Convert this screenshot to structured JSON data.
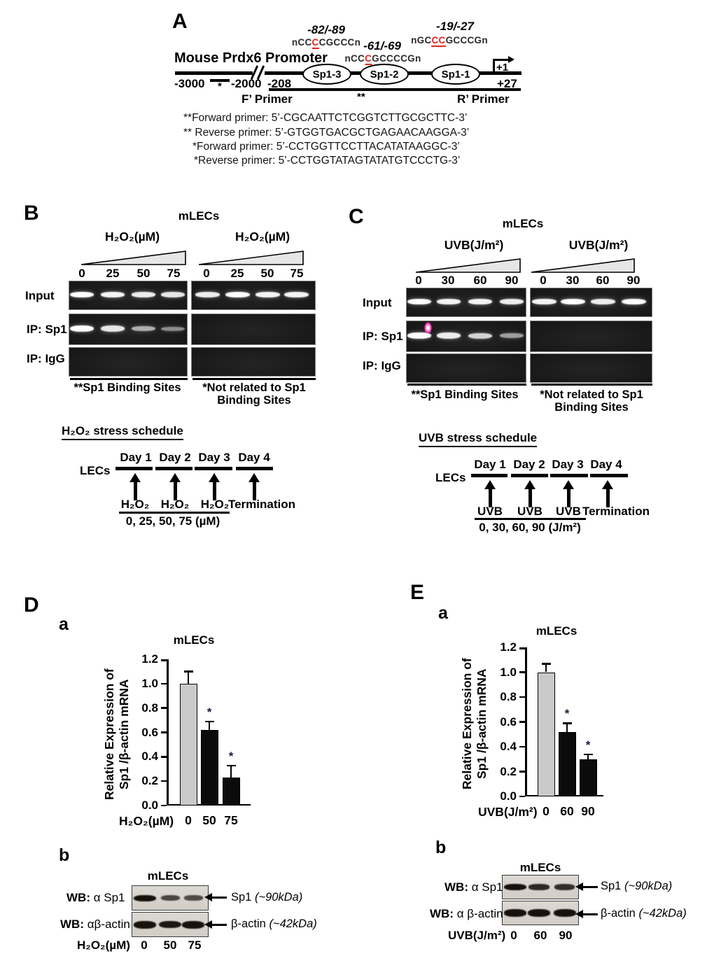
{
  "colors": {
    "sequence_highlight": "#e8251c",
    "artifact_magenta": "#ff35b5",
    "gray_bar": "#c9c9c9",
    "black_bar": "#0b0b0b"
  },
  "figure": {
    "A": {
      "label": "A",
      "promoter": "Mouse Prdx6 Promoter",
      "sites": [
        {
          "name": "Sp1-3",
          "pos": "-82/-89",
          "seq_pre": "nCC",
          "seq_red": "C",
          "seq_post": "CGCCCn"
        },
        {
          "name": "Sp1-2",
          "pos": "-61/-69",
          "seq_pre": "nCC",
          "seq_red": "C",
          "seq_post": "GCCCCGn"
        },
        {
          "name": "Sp1-1",
          "pos": "-19/-27",
          "seq_pre": "nGC",
          "seq_red": "CC",
          "seq_post": "GCCCGn"
        }
      ],
      "coords": {
        "m3000": "-3000",
        "star": "*",
        "m2000": "-2000",
        "m208": "-208",
        "tss": "+1",
        "p27": "+27"
      },
      "f_primer": "F’ Primer",
      "mid_star": "**",
      "r_primer": "R’ Primer",
      "primers": [
        "**Forward primer: 5’-CGCAATTCTCGGTCTTGCGCTTC-3’",
        "** Reverse primer: 5’-GTGGTGACGCTGAGAACAAGGA-3’",
        "*Forward primer: 5’-CCTGGTTCCTTACATATAAGGC-3’",
        "*Reverse primer: 5’-CCTGGTATAGTATATGTCCCTG-3’"
      ]
    },
    "B": {
      "label": "B",
      "cell": "mLECs",
      "dose_label": "H₂O₂(µM)",
      "doses": [
        "0",
        "25",
        "50",
        "75"
      ],
      "rows": [
        "Input",
        "IP: Sp1",
        "IP: IgG"
      ],
      "left_caption": "**Sp1 Binding Sites",
      "right_caption_line1": "*Not related to  Sp1",
      "right_caption_line2": "Binding Sites",
      "gels": {
        "left": {
          "input": [
            1,
            0.95,
            0.9,
            0.85
          ],
          "sp1": [
            1,
            0.85,
            0.5,
            0.28
          ],
          "igg": [
            0,
            0,
            0,
            0
          ]
        },
        "right": {
          "input": [
            0.9,
            1,
            0.95,
            0.95
          ],
          "sp1": [
            0,
            0,
            0,
            0
          ],
          "igg": [
            0,
            0,
            0,
            0
          ]
        }
      },
      "schedule": {
        "title": "H₂O₂ stress schedule",
        "cells": "LECs",
        "days": [
          "Day 1",
          "Day 2",
          "Day 3",
          "Day 4"
        ],
        "treatments": [
          "H₂O₂",
          "H₂O₂",
          "H₂O₂",
          "Termination"
        ],
        "dose_line": "0, 25, 50, 75 (µM)"
      }
    },
    "C": {
      "label": "C",
      "cell": "mLECs",
      "dose_label": "UVB(J/m²)",
      "doses": [
        "0",
        "30",
        "60",
        "90"
      ],
      "rows": [
        "Input",
        "IP: Sp1",
        "IP: IgG"
      ],
      "left_caption": "**Sp1 Binding Sites",
      "right_caption_line1": "*Not related to  Sp1",
      "right_caption_line2": "Binding Sites",
      "gels": {
        "left": {
          "input": [
            1,
            0.95,
            0.95,
            0.9
          ],
          "sp1": [
            1,
            0.9,
            0.75,
            0.4
          ],
          "igg": [
            0,
            0,
            0,
            0
          ]
        },
        "right": {
          "input": [
            0.95,
            1,
            0.9,
            1
          ],
          "sp1": [
            0,
            0,
            0,
            0
          ],
          "igg": [
            0,
            0,
            0,
            0
          ]
        }
      },
      "schedule": {
        "title": "UVB stress schedule",
        "cells": "LECs",
        "days": [
          "Day 1",
          "Day 2",
          "Day 3",
          "Day 4"
        ],
        "treatments": [
          "UVB",
          "UVB",
          "UVB",
          "Termination"
        ],
        "dose_line": "0, 30, 60, 90 (J/m²)"
      }
    },
    "D": {
      "label": "D",
      "a_label": "a",
      "b_label": "b",
      "blot": {
        "cell": "mLECs",
        "rows": [
          {
            "wb_prefix": "WB:",
            "wb_rest": " α Sp1",
            "target_name": "Sp1",
            "target_size": "(~90kDa)",
            "bands": [
              1,
              0.5,
              0.45
            ]
          },
          {
            "wb_prefix": "WB:",
            "wb_rest": " αβ-actin",
            "target_name": "β-actin",
            "target_size": "(~42kDa)",
            "bands": [
              1,
              0.95,
              1
            ]
          }
        ],
        "dose_label": "H₂O₂(µM)",
        "doses": [
          "0",
          "50",
          "75"
        ]
      }
    },
    "E": {
      "label": "E",
      "a_label": "a",
      "b_label": "b",
      "blot": {
        "cell": "mLECs",
        "rows": [
          {
            "wb_prefix": "WB:",
            "wb_rest": " α Sp1",
            "target_name": "Sp1",
            "target_size": "(~90kDa)",
            "bands": [
              1,
              0.78,
              0.72
            ]
          },
          {
            "wb_prefix": "WB:",
            "wb_rest": " α β-actin",
            "target_name": "β-actin",
            "target_size": "(~42kDa)",
            "bands": [
              1,
              1,
              1
            ]
          }
        ],
        "dose_label": "UVB(J/m²)",
        "doses": [
          "0",
          "60",
          "90"
        ]
      }
    }
  },
  "chart_data": [
    {
      "type": "bar",
      "panel": "D",
      "title": "mLECs",
      "ylabel_lines": [
        "Relative Expression of",
        "Sp1 /β-actin mRNA"
      ],
      "xlabel": "H₂O₂(µM)",
      "categories": [
        "0",
        "50",
        "75"
      ],
      "values": [
        1.0,
        0.62,
        0.23
      ],
      "errors": [
        0.1,
        0.07,
        0.1
      ],
      "sig": [
        "",
        "*",
        "*"
      ],
      "bar_colors": [
        "#c9c9c9",
        "#0b0b0b",
        "#0b0b0b"
      ],
      "ylim": [
        0,
        1.2
      ],
      "yticks": [
        "0.0",
        "0.2",
        "0.4",
        "0.6",
        "0.8",
        "1.0",
        "1.2"
      ],
      "grid": false,
      "legend": false
    },
    {
      "type": "bar",
      "panel": "E",
      "title": "mLECs",
      "ylabel_lines": [
        "Relative Expression of",
        "Sp1 /β-actin mRNA"
      ],
      "xlabel": "UVB(J/m²)",
      "categories": [
        "0",
        "60",
        "90"
      ],
      "values": [
        1.0,
        0.52,
        0.3
      ],
      "errors": [
        0.07,
        0.07,
        0.04
      ],
      "sig": [
        "",
        "*",
        "*"
      ],
      "bar_colors": [
        "#c9c9c9",
        "#0b0b0b",
        "#0b0b0b"
      ],
      "ylim": [
        0,
        1.2
      ],
      "yticks": [
        "0.0",
        "0.2",
        "0.4",
        "0.6",
        "0.8",
        "1.0",
        "1.2"
      ],
      "grid": false,
      "legend": false
    }
  ]
}
